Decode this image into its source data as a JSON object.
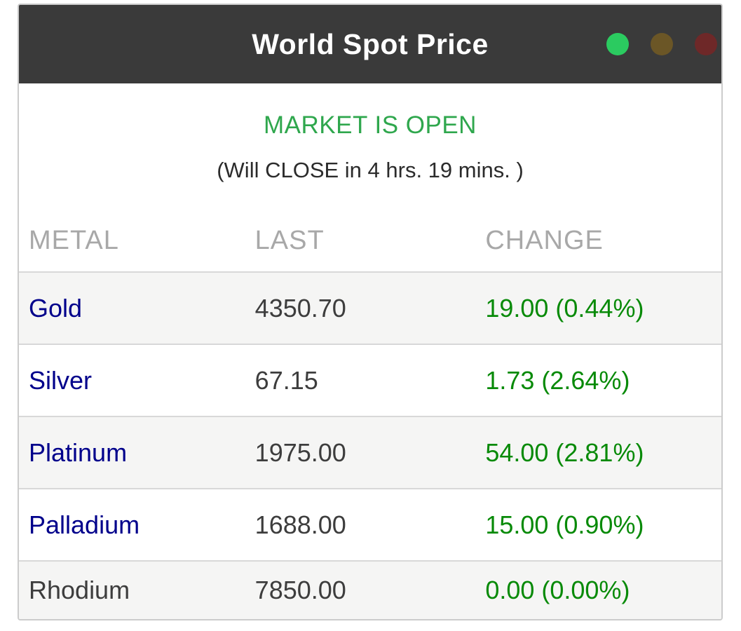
{
  "window": {
    "title": "World Spot Price",
    "dots": [
      {
        "name": "green-dot",
        "color": "#2bcb60"
      },
      {
        "name": "gold-dot",
        "color": "#6b5626"
      },
      {
        "name": "red-dot",
        "color": "#6e2828"
      }
    ]
  },
  "status": {
    "market_state": "MARKET IS OPEN",
    "countdown": "(Will CLOSE in 4 hrs. 19 mins. )"
  },
  "table": {
    "columns": [
      "METAL",
      "LAST",
      "CHANGE"
    ],
    "rows": [
      {
        "metal": "Gold",
        "last": "4350.70",
        "change": "19.00 (0.44%)",
        "is_link": true
      },
      {
        "metal": "Silver",
        "last": "67.15",
        "change": "1.73 (2.64%)",
        "is_link": true
      },
      {
        "metal": "Platinum",
        "last": "1975.00",
        "change": "54.00 (2.81%)",
        "is_link": true
      },
      {
        "metal": "Palladium",
        "last": "1688.00",
        "change": "15.00 (0.90%)",
        "is_link": true
      },
      {
        "metal": "Rhodium",
        "last": "7850.00",
        "change": "0.00 (0.00%)",
        "is_link": false
      }
    ]
  },
  "colors": {
    "titlebar_background": "#3a3a3a",
    "market_open_green": "#2fa74d",
    "change_green": "#088a08",
    "metal_link_navy": "#00008b",
    "header_text_gray": "#a8a8a8",
    "value_text_gray": "#3d3d3d",
    "alt_row_background": "#f5f5f4",
    "widget_border": "#cccccc"
  }
}
